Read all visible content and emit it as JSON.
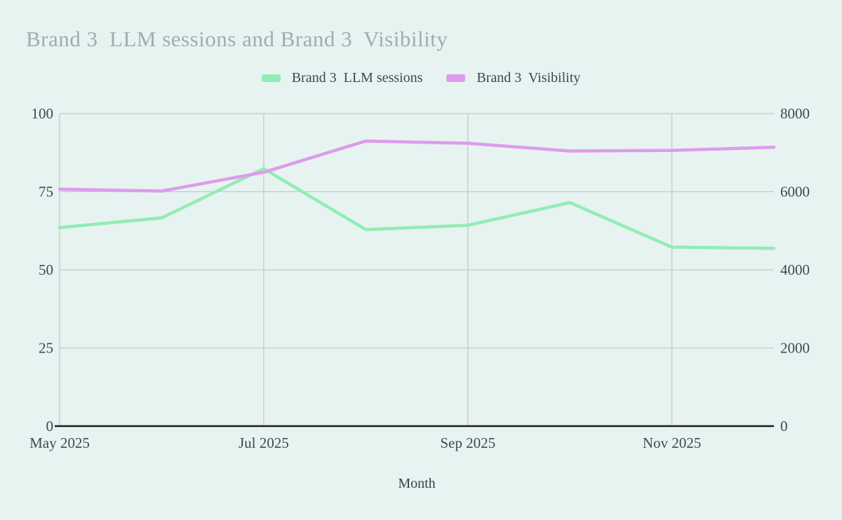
{
  "page": {
    "background": "#E7F3F1"
  },
  "title": {
    "text": "Brand 3  LLM sessions and Brand 3  Visibility",
    "color": "#A2ABAD"
  },
  "legend": {
    "items": [
      {
        "label": "Brand 3  LLM sessions",
        "color": "#90EDB5"
      },
      {
        "label": "Brand 3  Visibility",
        "color": "#DD9BEB"
      }
    ]
  },
  "chart_data": {
    "type": "line",
    "title": "Brand 3  LLM sessions and Brand 3  Visibility",
    "xlabel": "Month",
    "x": [
      "May 2025",
      "Jun 2025",
      "Jul 2025",
      "Aug 2025",
      "Sep 2025",
      "Oct 2025",
      "Nov 2025",
      "Dec 2025"
    ],
    "x_tick_indices": [
      0,
      2,
      4,
      6
    ],
    "x_tick_labels": [
      "May 2025",
      "Jul 2025",
      "Sep 2025",
      "Nov 2025"
    ],
    "left_axis": {
      "min": 0,
      "max": 100,
      "ticks": [
        0,
        25,
        50,
        75,
        100
      ]
    },
    "right_axis": {
      "min": 0,
      "max": 8000,
      "ticks": [
        0,
        2000,
        4000,
        6000,
        8000
      ]
    },
    "grid": true,
    "legend_position": "top-center",
    "series": [
      {
        "name": "Brand 3  LLM sessions",
        "color": "#90EDB5",
        "axis": "right",
        "values": [
          5080,
          5330,
          6590,
          5030,
          5140,
          5720,
          4580,
          4550
        ]
      },
      {
        "name": "Brand 3  Visibility",
        "color": "#DD9BEB",
        "axis": "left",
        "values": [
          75.8,
          75.2,
          81.2,
          91.2,
          90.5,
          88.0,
          88.2,
          89.2
        ]
      }
    ]
  },
  "colors": {
    "gridline": "#C4CACA",
    "axis_line": "#1C1C1C",
    "tick_text": "#3B4A50",
    "axis_title_text": "#32444B"
  }
}
